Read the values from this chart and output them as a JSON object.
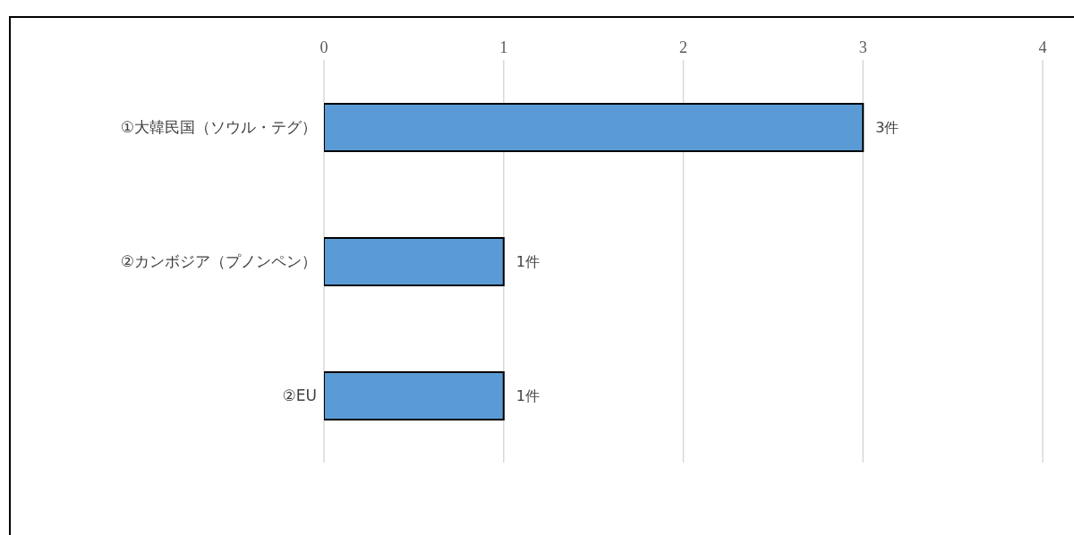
{
  "chart_data": {
    "type": "bar",
    "orientation": "horizontal",
    "categories": [
      "①大韓民国（ソウル・テグ）",
      "②カンボジア（プノンペン）",
      "②EU"
    ],
    "values": [
      3,
      1,
      1
    ],
    "value_labels": [
      "3件",
      "1件",
      "1件"
    ],
    "color": "#5b9bd5",
    "xlim": [
      0,
      4
    ],
    "xticks": [
      0,
      1,
      2,
      3,
      4
    ],
    "grid": "x"
  }
}
